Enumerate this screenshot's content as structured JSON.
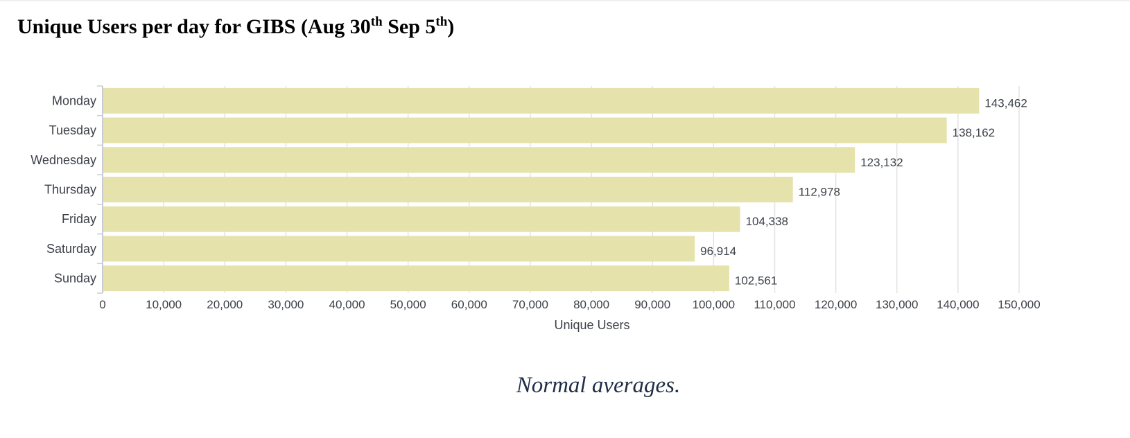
{
  "title": {
    "main": "Unique Users per day for GIBS (Aug 30",
    "sup1": "th",
    "mid": " Sep 5",
    "sup2": "th",
    "end": ")"
  },
  "caption": "Normal averages.",
  "colors": {
    "bar": "#e6e2ab",
    "grid": "#e3e3e3",
    "axis": "#c8ccd2",
    "text": "#3c4148"
  },
  "chart_data": {
    "type": "bar",
    "orientation": "horizontal",
    "categories": [
      "Monday",
      "Tuesday",
      "Wednesday",
      "Thursday",
      "Friday",
      "Saturday",
      "Sunday"
    ],
    "values": [
      143462,
      138162,
      123132,
      112978,
      104338,
      96914,
      102561
    ],
    "value_labels": [
      "143,462",
      "138,162",
      "123,132",
      "112,978",
      "104,338",
      "96,914",
      "102,561"
    ],
    "xlabel": "Unique Users",
    "ylabel": "",
    "xlim": [
      0,
      150000
    ],
    "xticks": [
      0,
      10000,
      20000,
      30000,
      40000,
      50000,
      60000,
      70000,
      80000,
      90000,
      100000,
      110000,
      120000,
      130000,
      140000,
      150000
    ],
    "xtick_labels": [
      "0",
      "10,000",
      "20,000",
      "30,000",
      "40,000",
      "50,000",
      "60,000",
      "70,000",
      "80,000",
      "90,000",
      "100,000",
      "110,000",
      "120,000",
      "130,000",
      "140,000",
      "150,000"
    ],
    "grid": true,
    "legend": "none"
  }
}
